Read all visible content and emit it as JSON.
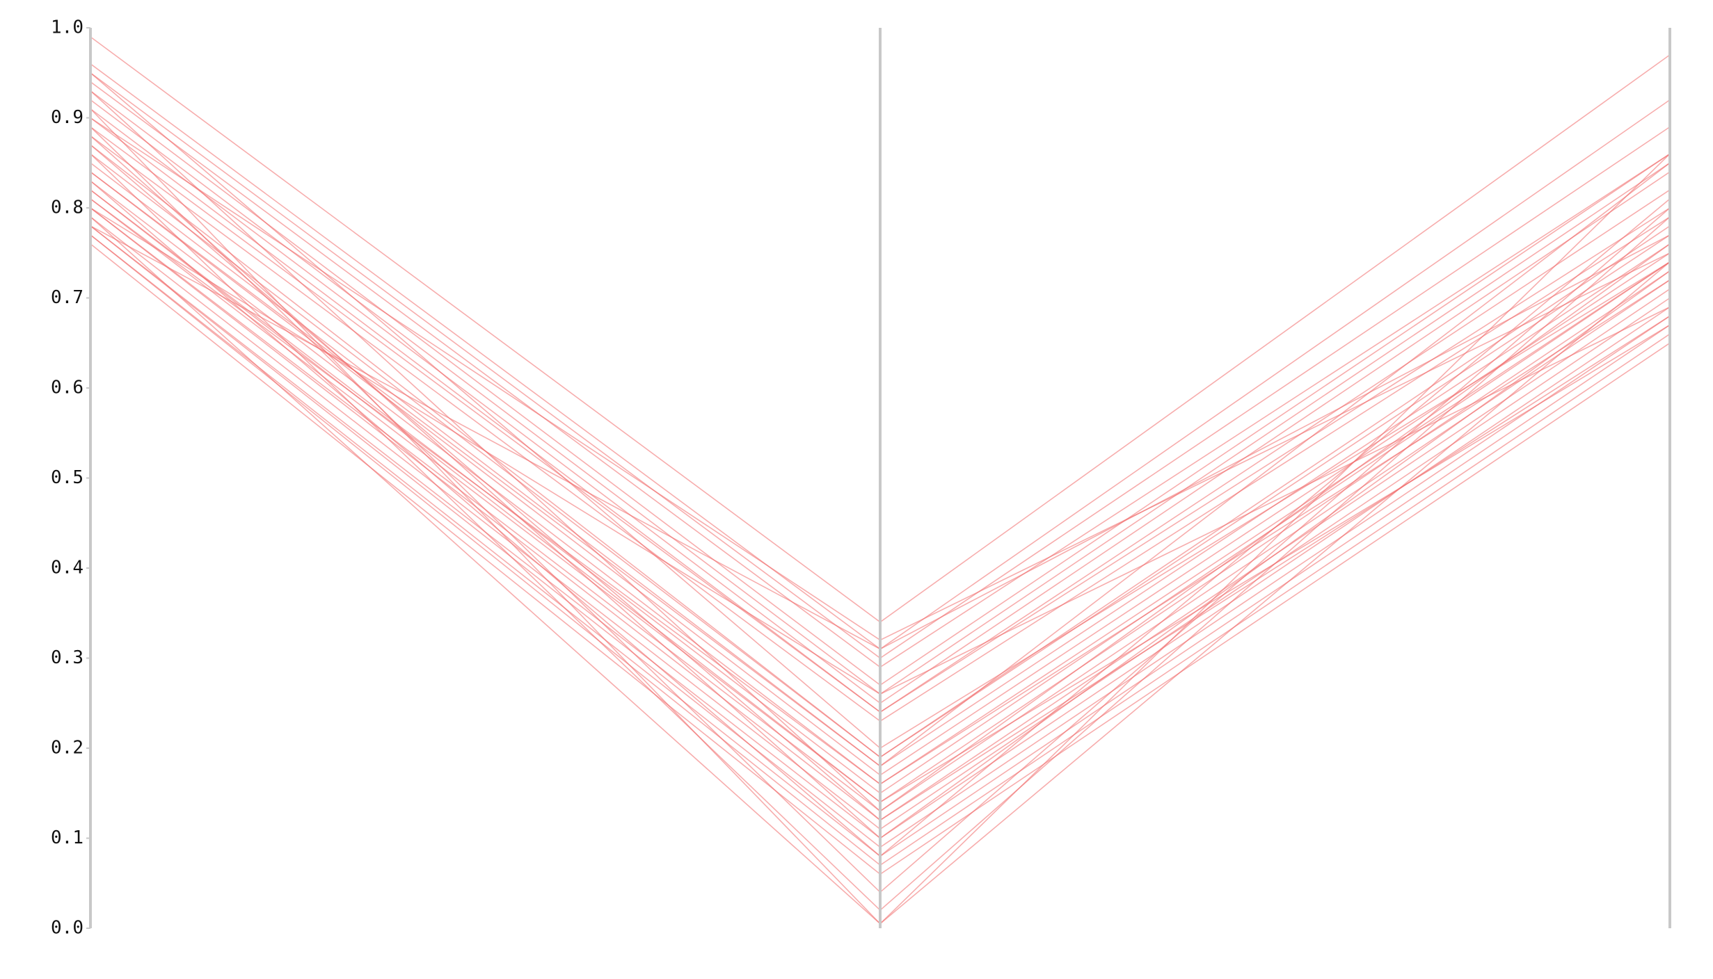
{
  "chart_data": {
    "type": "parallel-coordinates",
    "axes": [
      "",
      "",
      ""
    ],
    "ylim": [
      0,
      1
    ],
    "ticks": [
      "0.0",
      "0.1",
      "0.2",
      "0.3",
      "0.4",
      "0.5",
      "0.6",
      "0.7",
      "0.8",
      "0.9",
      "1.0"
    ],
    "grid": false,
    "legend": "none",
    "line_color": "#f06a6a",
    "axis_color": "#c8c8c8",
    "series": [
      {
        "values": [
          0.99,
          0.34,
          0.97
        ]
      },
      {
        "values": [
          0.96,
          0.31,
          0.92
        ]
      },
      {
        "values": [
          0.95,
          0.3,
          0.89
        ]
      },
      {
        "values": [
          0.94,
          0.29,
          0.86
        ]
      },
      {
        "values": [
          0.93,
          0.27,
          0.86
        ]
      },
      {
        "values": [
          0.92,
          0.26,
          0.85
        ]
      },
      {
        "values": [
          0.91,
          0.25,
          0.84
        ]
      },
      {
        "values": [
          0.9,
          0.24,
          0.82
        ]
      },
      {
        "values": [
          0.89,
          0.24,
          0.8
        ]
      },
      {
        "values": [
          0.88,
          0.23,
          0.79
        ]
      },
      {
        "values": [
          0.87,
          0.19,
          0.78
        ]
      },
      {
        "values": [
          0.86,
          0.19,
          0.77
        ]
      },
      {
        "values": [
          0.85,
          0.18,
          0.76
        ]
      },
      {
        "values": [
          0.84,
          0.17,
          0.75
        ]
      },
      {
        "values": [
          0.83,
          0.16,
          0.74
        ]
      },
      {
        "values": [
          0.82,
          0.15,
          0.74
        ]
      },
      {
        "values": [
          0.81,
          0.14,
          0.73
        ]
      },
      {
        "values": [
          0.8,
          0.13,
          0.72
        ]
      },
      {
        "values": [
          0.8,
          0.12,
          0.71
        ]
      },
      {
        "values": [
          0.79,
          0.11,
          0.7
        ]
      },
      {
        "values": [
          0.78,
          0.1,
          0.69
        ]
      },
      {
        "values": [
          0.78,
          0.09,
          0.68
        ]
      },
      {
        "values": [
          0.77,
          0.08,
          0.67
        ]
      },
      {
        "values": [
          0.77,
          0.07,
          0.66
        ]
      },
      {
        "values": [
          0.76,
          0.06,
          0.65
        ]
      },
      {
        "values": [
          0.89,
          0.04,
          0.8
        ]
      },
      {
        "values": [
          0.86,
          0.02,
          0.79
        ]
      },
      {
        "values": [
          0.91,
          0.005,
          0.74
        ]
      },
      {
        "values": [
          0.79,
          0.005,
          0.86
        ]
      },
      {
        "values": [
          0.82,
          0.14,
          0.67
        ]
      },
      {
        "values": [
          0.93,
          0.13,
          0.76
        ]
      },
      {
        "values": [
          0.88,
          0.1,
          0.73
        ]
      },
      {
        "values": [
          0.84,
          0.18,
          0.85
        ]
      },
      {
        "values": [
          0.81,
          0.16,
          0.72
        ]
      },
      {
        "values": [
          0.95,
          0.2,
          0.74
        ]
      },
      {
        "values": [
          0.9,
          0.32,
          0.75
        ]
      },
      {
        "values": [
          0.78,
          0.31,
          0.77
        ]
      },
      {
        "values": [
          0.8,
          0.26,
          0.69
        ]
      },
      {
        "values": [
          0.83,
          0.08,
          0.81
        ]
      },
      {
        "values": [
          0.87,
          0.12,
          0.68
        ]
      }
    ]
  }
}
